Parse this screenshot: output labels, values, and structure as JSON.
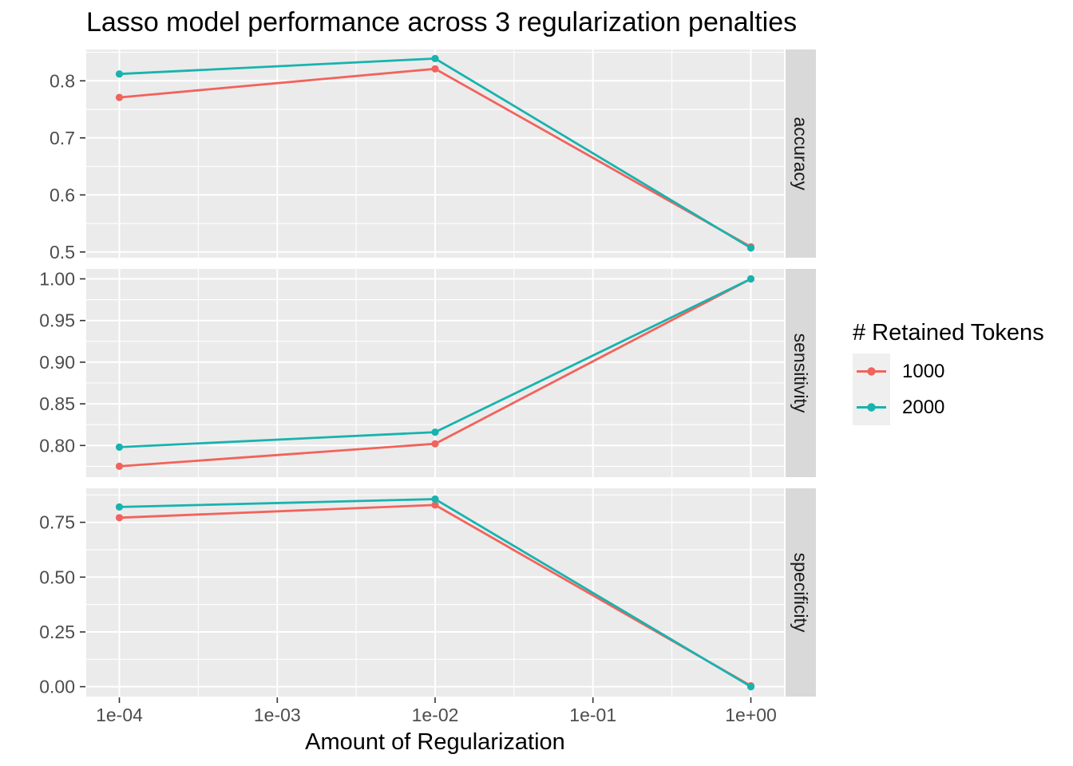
{
  "title": "Lasso model performance across 3 regularization penalties",
  "x_axis": {
    "label": "Amount of Regularization",
    "tick_labels": [
      "1e-04",
      "1e-03",
      "1e-02",
      "1e-01",
      "1e+00"
    ],
    "tick_values": [
      0.0001,
      0.001,
      0.01,
      0.1,
      1
    ]
  },
  "legend": {
    "title": "# Retained Tokens",
    "entries": [
      {
        "label": "1000",
        "color": "#F1635C"
      },
      {
        "label": "2000",
        "color": "#18B3AE"
      }
    ]
  },
  "colors": {
    "panel_bg": "#EBEBEB",
    "strip_bg": "#D9D9D9",
    "grid": "#FFFFFF",
    "axis_tick": "#333333",
    "tick_label": "#4D4D4D",
    "strip_text": "#1A1A1A",
    "legend_key_bg": "#EFEFEF",
    "series_1000": "#F1635C",
    "series_2000": "#18B3AE"
  },
  "chart_data": {
    "type": "line",
    "x_scale": "log10",
    "x": [
      0.0001,
      0.01,
      1
    ],
    "xlim_log": [
      -4.21,
      0.21
    ],
    "x_minor_log": [
      -3.5,
      -2.5,
      -1.5,
      -0.5
    ],
    "grid": true,
    "legend_position": "right",
    "facets": [
      {
        "label": "accuracy",
        "ylim": [
          0.49,
          0.855
        ],
        "ytick_values": [
          0.5,
          0.6,
          0.7,
          0.8
        ],
        "ytick_labels": [
          "0.5",
          "0.6",
          "0.7",
          "0.8"
        ],
        "minor_yticks": [
          0.55,
          0.65,
          0.75,
          0.85
        ],
        "series": [
          {
            "name": "1000",
            "color": "#F1635C",
            "values": [
              0.771,
              0.821,
              0.509
            ]
          },
          {
            "name": "2000",
            "color": "#18B3AE",
            "values": [
              0.812,
              0.839,
              0.507
            ]
          }
        ]
      },
      {
        "label": "sensitivity",
        "ylim": [
          0.762,
          1.012
        ],
        "ytick_values": [
          0.8,
          0.85,
          0.9,
          0.95,
          1.0
        ],
        "ytick_labels": [
          "0.80",
          "0.85",
          "0.90",
          "0.95",
          "1.00"
        ],
        "minor_yticks": [
          0.775,
          0.825,
          0.875,
          0.925,
          0.975
        ],
        "series": [
          {
            "name": "1000",
            "color": "#F1635C",
            "values": [
              0.775,
              0.802,
              1.0
            ]
          },
          {
            "name": "2000",
            "color": "#18B3AE",
            "values": [
              0.798,
              0.816,
              1.0
            ]
          }
        ]
      },
      {
        "label": "specificity",
        "ylim": [
          -0.045,
          0.905
        ],
        "ytick_values": [
          0.0,
          0.25,
          0.5,
          0.75
        ],
        "ytick_labels": [
          "0.00",
          "0.25",
          "0.50",
          "0.75"
        ],
        "minor_yticks": [
          0.125,
          0.375,
          0.625,
          0.875
        ],
        "series": [
          {
            "name": "1000",
            "color": "#F1635C",
            "values": [
              0.771,
              0.829,
              0.004
            ]
          },
          {
            "name": "2000",
            "color": "#18B3AE",
            "values": [
              0.82,
              0.856,
              0.0
            ]
          }
        ]
      }
    ]
  }
}
